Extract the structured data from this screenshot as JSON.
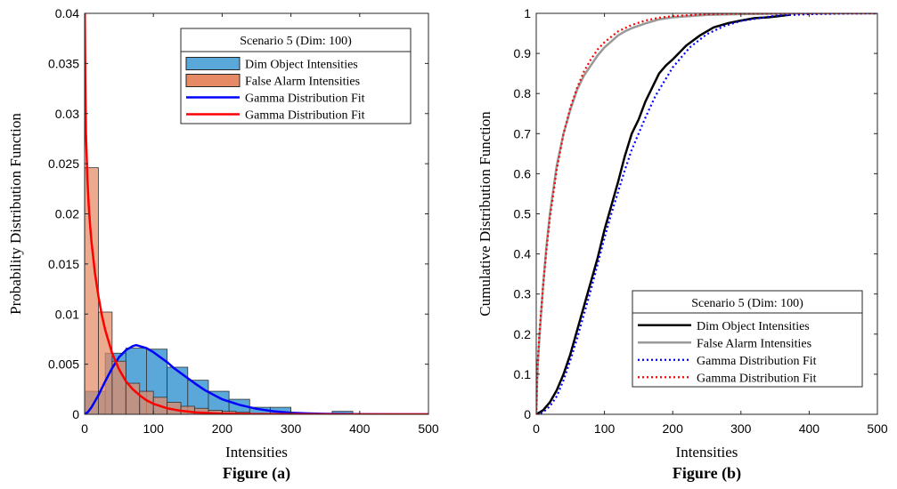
{
  "chart_data": [
    {
      "type": "histogram",
      "caption": "Figure (a)",
      "xlabel": "Intensities",
      "ylabel": "Probability Distribution Function",
      "xlim": [
        0,
        500
      ],
      "ylim": [
        0,
        0.04
      ],
      "xticks": [
        0,
        100,
        200,
        300,
        400,
        500
      ],
      "yticks": [
        0,
        0.005,
        0.01,
        0.015,
        0.02,
        0.025,
        0.03,
        0.035,
        0.04
      ],
      "xtick_labels": [
        "0",
        "100",
        "200",
        "300",
        "400",
        "500"
      ],
      "ytick_labels": [
        "0",
        "0.005",
        "0.01",
        "0.015",
        "0.02",
        "0.025",
        "0.03",
        "0.035",
        "0.04"
      ],
      "grid": false,
      "legend_title": "Scenario 5 (Dim: 100)",
      "legend_position": "top-right",
      "series": [
        {
          "name": "Dim Object Intensities",
          "kind": "histogram",
          "color": "#5aa7d9",
          "bin_width": 30,
          "bin_edges": [
            0,
            30,
            60,
            90,
            120,
            150,
            180,
            210,
            240,
            270,
            300,
            330,
            360,
            390
          ],
          "values": [
            0.0023,
            0.0061,
            0.0066,
            0.0065,
            0.0047,
            0.0034,
            0.0023,
            0.0015,
            0.0007,
            0.0007,
            0.0001,
            0.0001,
            0.0003
          ]
        },
        {
          "name": "False Alarm Intensities",
          "kind": "histogram",
          "color": "#e58a64",
          "bin_width": 20,
          "bin_edges": [
            0,
            20,
            40,
            60,
            80,
            100,
            120,
            140,
            160,
            180,
            200,
            220,
            240,
            260
          ],
          "values": [
            0.0246,
            0.0102,
            0.0053,
            0.0031,
            0.0023,
            0.0017,
            0.0012,
            0.0008,
            0.0006,
            0.0004,
            0.0003,
            0.0002,
            0.0001
          ]
        },
        {
          "name": "Gamma Distribution Fit",
          "kind": "line",
          "color": "#0000ff",
          "x": [
            0,
            5,
            10,
            20,
            30,
            40,
            50,
            60,
            70,
            75,
            80,
            90,
            100,
            110,
            120,
            130,
            140,
            150,
            160,
            175,
            200,
            225,
            250,
            275,
            300,
            325,
            350,
            400,
            450,
            500
          ],
          "y": [
            0,
            0.00025,
            0.0007,
            0.0019,
            0.0033,
            0.0046,
            0.0057,
            0.0064,
            0.0068,
            0.0069,
            0.0068,
            0.0066,
            0.0062,
            0.0057,
            0.0052,
            0.0046,
            0.0041,
            0.0036,
            0.0031,
            0.0024,
            0.0015,
            0.00095,
            0.00055,
            0.0003,
            0.00016,
            9e-05,
            5e-05,
            1e-05,
            2e-06,
            0
          ]
        },
        {
          "name": "Gamma Distribution Fit",
          "kind": "line",
          "color": "#ff0000",
          "x": [
            0.3,
            1,
            2,
            4,
            6,
            8,
            10,
            15,
            20,
            25,
            30,
            40,
            50,
            60,
            70,
            80,
            90,
            100,
            120,
            140,
            160,
            180,
            200,
            250,
            300,
            400,
            500
          ],
          "y": [
            0.04,
            0.033,
            0.028,
            0.0235,
            0.0208,
            0.0188,
            0.0172,
            0.0141,
            0.0118,
            0.0099,
            0.0084,
            0.0061,
            0.0045,
            0.0033,
            0.0025,
            0.0019,
            0.0014,
            0.00105,
            0.0006,
            0.00035,
            0.0002,
            0.00012,
            7e-05,
            2e-05,
            6e-06,
            0,
            0
          ]
        }
      ]
    },
    {
      "type": "line",
      "caption": "Figure (b)",
      "xlabel": "Intensities",
      "ylabel": "Cumulative Distribution Function",
      "xlim": [
        0,
        500
      ],
      "ylim": [
        0,
        1
      ],
      "xticks": [
        0,
        100,
        200,
        300,
        400,
        500
      ],
      "yticks": [
        0,
        0.1,
        0.2,
        0.3,
        0.4,
        0.5,
        0.6,
        0.7,
        0.8,
        0.9,
        1
      ],
      "xtick_labels": [
        "0",
        "100",
        "200",
        "300",
        "400",
        "500"
      ],
      "ytick_labels": [
        "0",
        "0.1",
        "0.2",
        "0.3",
        "0.4",
        "0.5",
        "0.6",
        "0.7",
        "0.8",
        "0.9",
        "1"
      ],
      "grid": false,
      "legend_title": "Scenario 5 (Dim: 100)",
      "legend_position": "bottom-right",
      "series": [
        {
          "name": "Dim Object Intensities",
          "color": "#000000",
          "style": "solid",
          "x": [
            0,
            5,
            10,
            15,
            20,
            25,
            30,
            40,
            50,
            60,
            70,
            80,
            90,
            100,
            110,
            120,
            130,
            140,
            150,
            160,
            170,
            180,
            190,
            200,
            220,
            240,
            260,
            280,
            300,
            320,
            340,
            360,
            370
          ],
          "y": [
            0,
            0.005,
            0.01,
            0.02,
            0.03,
            0.045,
            0.06,
            0.1,
            0.15,
            0.21,
            0.27,
            0.33,
            0.39,
            0.46,
            0.52,
            0.58,
            0.645,
            0.7,
            0.735,
            0.78,
            0.815,
            0.85,
            0.87,
            0.885,
            0.92,
            0.945,
            0.965,
            0.975,
            0.982,
            0.988,
            0.99,
            0.994,
            0.996
          ]
        },
        {
          "name": "False Alarm Intensities",
          "color": "#999999",
          "style": "solid",
          "x": [
            0,
            2,
            5,
            10,
            15,
            20,
            30,
            40,
            50,
            60,
            70,
            80,
            90,
            100,
            110,
            120,
            130,
            140,
            160,
            180,
            200,
            250,
            300,
            400,
            500
          ],
          "y": [
            0,
            0.12,
            0.2,
            0.32,
            0.42,
            0.5,
            0.62,
            0.7,
            0.76,
            0.81,
            0.845,
            0.87,
            0.895,
            0.915,
            0.93,
            0.945,
            0.955,
            0.963,
            0.975,
            0.985,
            0.99,
            0.996,
            0.998,
            1,
            1
          ]
        },
        {
          "name": "Gamma Distribution Fit",
          "color": "#0000ff",
          "style": "dotted",
          "x": [
            0,
            10,
            20,
            30,
            40,
            50,
            60,
            70,
            80,
            90,
            100,
            110,
            120,
            130,
            140,
            150,
            160,
            175,
            200,
            225,
            250,
            275,
            300,
            350,
            400,
            450,
            500
          ],
          "y": [
            0,
            0.005,
            0.02,
            0.045,
            0.085,
            0.135,
            0.19,
            0.25,
            0.31,
            0.375,
            0.44,
            0.5,
            0.555,
            0.61,
            0.66,
            0.7,
            0.74,
            0.795,
            0.865,
            0.915,
            0.948,
            0.968,
            0.981,
            0.994,
            0.998,
            0.9995,
            1
          ]
        },
        {
          "name": "Gamma Distribution Fit",
          "color": "#ff0000",
          "style": "dotted",
          "x": [
            0,
            1,
            2,
            5,
            10,
            15,
            20,
            30,
            40,
            50,
            60,
            70,
            80,
            90,
            100,
            120,
            140,
            160,
            180,
            200,
            250,
            300,
            400,
            500
          ],
          "y": [
            0,
            0.08,
            0.125,
            0.21,
            0.32,
            0.41,
            0.49,
            0.61,
            0.7,
            0.765,
            0.815,
            0.855,
            0.885,
            0.91,
            0.928,
            0.955,
            0.971,
            0.982,
            0.989,
            0.993,
            0.998,
            0.9995,
            1,
            1
          ]
        }
      ]
    }
  ]
}
